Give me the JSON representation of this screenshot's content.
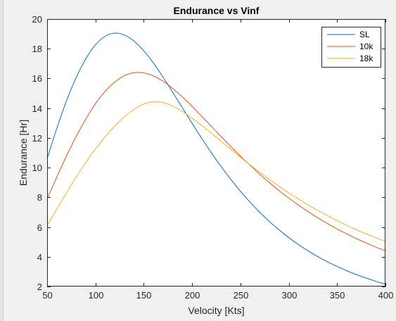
{
  "chart_data": {
    "type": "line",
    "title": "Endurance vs Vinf",
    "xlabel": "Velocity [Kts]",
    "ylabel": "Endurance [Hr]",
    "xlim": [
      50,
      400
    ],
    "ylim": [
      2,
      20
    ],
    "xticks": [
      50,
      100,
      150,
      200,
      250,
      300,
      350,
      400
    ],
    "yticks": [
      2,
      4,
      6,
      8,
      10,
      12,
      14,
      16,
      18,
      20
    ],
    "grid": false,
    "legend_position": "top-right",
    "series": [
      {
        "name": "SL",
        "color": "#0072bd",
        "x": [
          50,
          60,
          70,
          80,
          90,
          100,
          110,
          120,
          130,
          140,
          150,
          160,
          170,
          180,
          190,
          200,
          210,
          220,
          230,
          240,
          250,
          260,
          270,
          280,
          290,
          300,
          310,
          320,
          330,
          340,
          350,
          360,
          370,
          380,
          390,
          400
        ],
        "y": [
          10.6,
          12.64,
          14.49,
          16.06,
          17.32,
          18.26,
          18.84,
          19.05,
          18.92,
          18.51,
          17.86,
          17.03,
          16.08,
          15.06,
          14.02,
          12.98,
          11.96,
          10.99,
          10.07,
          9.21,
          8.41,
          7.67,
          6.99,
          6.37,
          5.81,
          5.29,
          4.82,
          4.4,
          4.01,
          3.66,
          3.35,
          3.06,
          2.8,
          2.57,
          2.35,
          2.16
        ]
      },
      {
        "name": "10k",
        "color": "#d95319",
        "x": [
          50,
          60,
          70,
          80,
          90,
          100,
          110,
          120,
          130,
          140,
          150,
          160,
          170,
          180,
          190,
          200,
          210,
          220,
          230,
          240,
          250,
          260,
          270,
          280,
          290,
          300,
          310,
          320,
          330,
          340,
          350,
          360,
          370,
          380,
          390,
          400
        ],
        "y": [
          7.9,
          9.36,
          10.78,
          12.09,
          13.27,
          14.3,
          15.13,
          15.76,
          16.19,
          16.39,
          16.37,
          16.17,
          15.81,
          15.32,
          14.75,
          14.12,
          13.45,
          12.77,
          12.09,
          11.42,
          10.77,
          10.15,
          9.55,
          8.99,
          8.45,
          7.95,
          7.48,
          7.04,
          6.62,
          6.24,
          5.87,
          5.54,
          5.22,
          4.93,
          4.65,
          4.4
        ]
      },
      {
        "name": "18k",
        "color": "#edb120",
        "x": [
          50,
          60,
          70,
          80,
          90,
          100,
          110,
          120,
          130,
          140,
          150,
          160,
          170,
          180,
          190,
          200,
          210,
          220,
          230,
          240,
          250,
          260,
          270,
          280,
          290,
          300,
          310,
          320,
          330,
          340,
          350,
          360,
          370,
          380,
          390,
          400
        ],
        "y": [
          6.1,
          7.21,
          8.3,
          9.36,
          10.35,
          11.26,
          12.08,
          12.8,
          13.42,
          13.92,
          14.28,
          14.43,
          14.37,
          14.14,
          13.78,
          13.33,
          12.84,
          12.31,
          11.77,
          11.23,
          10.7,
          10.18,
          9.68,
          9.2,
          8.74,
          8.3,
          7.89,
          7.49,
          7.12,
          6.77,
          6.43,
          6.12,
          5.82,
          5.54,
          5.28,
          5.03
        ]
      }
    ]
  }
}
